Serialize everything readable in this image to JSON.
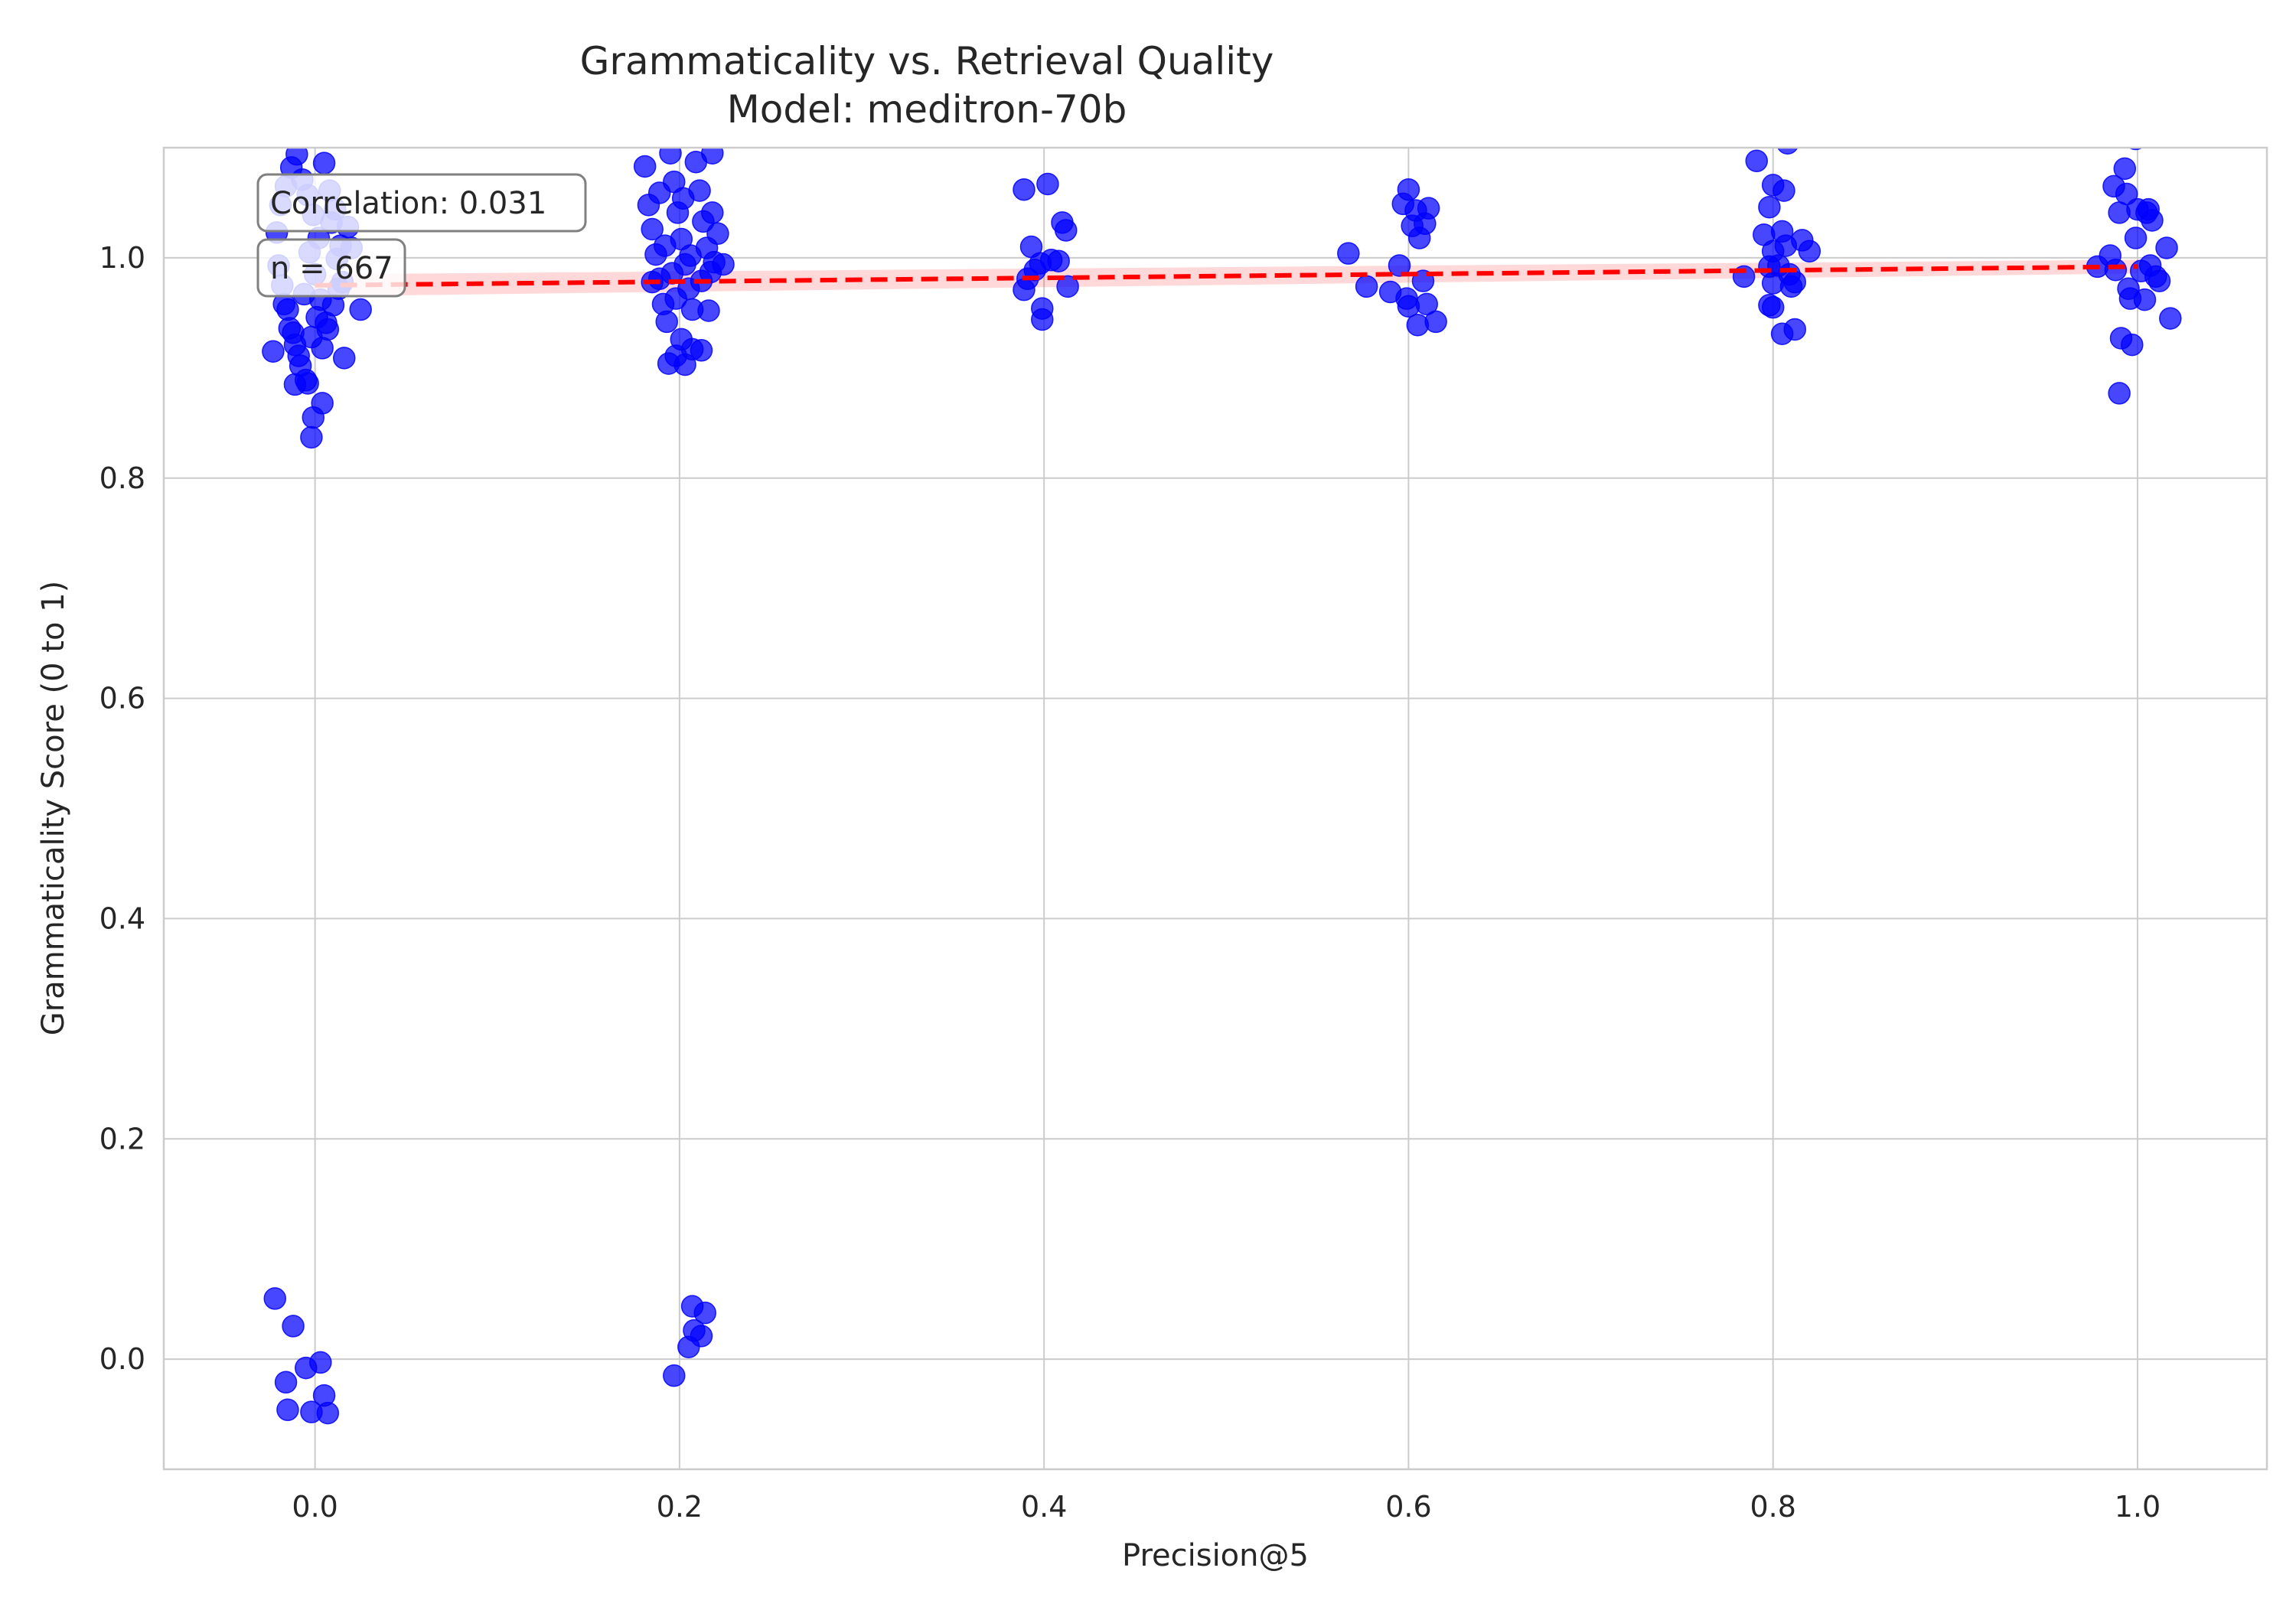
{
  "chart_data": {
    "type": "scatter",
    "title": "Grammaticality vs. Retrieval Quality",
    "subtitle": "Model: meditron-70b",
    "xlabel": "Precision@5",
    "ylabel": "Grammaticality Score (0 to 1)",
    "xlim": [
      -0.083,
      1.071
    ],
    "ylim": [
      -0.1,
      1.1
    ],
    "xticks": [
      0.0,
      0.2,
      0.4,
      0.6,
      0.8,
      1.0
    ],
    "xtick_labels": [
      "0.0",
      "0.2",
      "0.4",
      "0.6",
      "0.8",
      "1.0"
    ],
    "yticks": [
      0.0,
      0.2,
      0.4,
      0.6,
      0.8,
      1.0
    ],
    "ytick_labels": [
      "0.0",
      "0.2",
      "0.4",
      "0.6",
      "0.8",
      "1.0"
    ],
    "grid": true,
    "point_color": "#0000ff",
    "trend_color": "#ff0000",
    "annotations": {
      "correlation": "Correlation: 0.031",
      "n": "n = 667"
    },
    "trend_line": {
      "x": [
        0.0,
        1.0
      ],
      "y": [
        0.975,
        0.992
      ]
    },
    "points": [
      [
        -0.021,
        1.023
      ],
      [
        -0.018,
        0.975
      ],
      [
        -0.015,
        0.953
      ],
      [
        -0.012,
        0.932
      ],
      [
        -0.009,
        0.911
      ],
      [
        -0.006,
        0.967
      ],
      [
        -0.003,
        1.005
      ],
      [
        0.0,
        0.985
      ],
      [
        0.003,
        0.962
      ],
      [
        0.006,
        0.941
      ],
      [
        0.009,
        1.032
      ],
      [
        0.012,
        0.999
      ],
      [
        0.015,
        0.978
      ],
      [
        -0.019,
        1.048
      ],
      [
        -0.016,
        1.065
      ],
      [
        -0.013,
        1.082
      ],
      [
        -0.01,
        1.094
      ],
      [
        -0.007,
        1.071
      ],
      [
        -0.004,
        1.057
      ],
      [
        -0.001,
        1.039
      ],
      [
        0.002,
        1.018
      ],
      [
        0.005,
        1.086
      ],
      [
        0.008,
        1.061
      ],
      [
        0.011,
        1.044
      ],
      [
        0.014,
        1.011
      ],
      [
        -0.017,
        0.958
      ],
      [
        -0.014,
        0.936
      ],
      [
        -0.011,
        0.921
      ],
      [
        -0.008,
        0.902
      ],
      [
        -0.005,
        0.889
      ],
      [
        -0.002,
        0.928
      ],
      [
        0.001,
        0.946
      ],
      [
        0.004,
        0.918
      ],
      [
        0.007,
        0.935
      ],
      [
        0.01,
        0.957
      ],
      [
        0.013,
        0.972
      ],
      [
        0.016,
        0.909
      ],
      [
        -0.011,
        0.885
      ],
      [
        -0.004,
        0.886
      ],
      [
        0.004,
        0.868
      ],
      [
        -0.001,
        0.855
      ],
      [
        -0.002,
        0.837
      ],
      [
        0.025,
        0.953
      ],
      [
        0.02,
        1.009
      ],
      [
        0.018,
        1.028
      ],
      [
        -0.023,
        0.915
      ],
      [
        -0.02,
        0.993
      ],
      [
        -0.022,
        0.055
      ],
      [
        -0.012,
        0.03
      ],
      [
        -0.016,
        -0.021
      ],
      [
        -0.005,
        -0.008
      ],
      [
        0.003,
        -0.003
      ],
      [
        0.005,
        -0.033
      ],
      [
        -0.015,
        -0.046
      ],
      [
        -0.002,
        -0.048
      ],
      [
        0.007,
        -0.049
      ],
      [
        0.181,
        1.083
      ],
      [
        0.183,
        1.048
      ],
      [
        0.185,
        1.026
      ],
      [
        0.187,
        1.003
      ],
      [
        0.189,
        0.981
      ],
      [
        0.191,
        0.958
      ],
      [
        0.193,
        0.942
      ],
      [
        0.195,
        1.095
      ],
      [
        0.197,
        1.069
      ],
      [
        0.199,
        1.041
      ],
      [
        0.201,
        1.017
      ],
      [
        0.203,
        0.994
      ],
      [
        0.205,
        0.972
      ],
      [
        0.207,
        0.953
      ],
      [
        0.209,
        1.087
      ],
      [
        0.211,
        1.061
      ],
      [
        0.213,
        1.033
      ],
      [
        0.215,
        1.009
      ],
      [
        0.217,
        0.987
      ],
      [
        0.219,
        0.996
      ],
      [
        0.221,
        1.022
      ],
      [
        0.224,
        0.994
      ],
      [
        0.189,
        1.059
      ],
      [
        0.192,
        1.011
      ],
      [
        0.196,
        0.986
      ],
      [
        0.198,
        0.963
      ],
      [
        0.202,
        1.054
      ],
      [
        0.206,
        1.002
      ],
      [
        0.212,
        0.979
      ],
      [
        0.216,
        0.952
      ],
      [
        0.194,
        0.904
      ],
      [
        0.198,
        0.911
      ],
      [
        0.203,
        0.903
      ],
      [
        0.207,
        0.917
      ],
      [
        0.212,
        0.916
      ],
      [
        0.201,
        0.926
      ],
      [
        0.185,
        0.978
      ],
      [
        0.218,
        1.095
      ],
      [
        0.218,
        1.041
      ],
      [
        0.207,
        0.048
      ],
      [
        0.214,
        0.042
      ],
      [
        0.208,
        0.026
      ],
      [
        0.212,
        0.021
      ],
      [
        0.205,
        0.011
      ],
      [
        0.197,
        -0.015
      ],
      [
        0.389,
        1.062
      ],
      [
        0.402,
        1.067
      ],
      [
        0.41,
        1.032
      ],
      [
        0.412,
        1.025
      ],
      [
        0.393,
        1.01
      ],
      [
        0.398,
        0.995
      ],
      [
        0.404,
        0.998
      ],
      [
        0.408,
        0.997
      ],
      [
        0.391,
        0.981
      ],
      [
        0.389,
        0.971
      ],
      [
        0.413,
        0.974
      ],
      [
        0.399,
        0.954
      ],
      [
        0.399,
        0.944
      ],
      [
        0.395,
        0.989
      ],
      [
        0.567,
        1.004
      ],
      [
        0.577,
        0.974
      ],
      [
        0.59,
        0.969
      ],
      [
        0.595,
        0.993
      ],
      [
        0.597,
        1.049
      ],
      [
        0.6,
        1.062
      ],
      [
        0.602,
        1.029
      ],
      [
        0.604,
        1.043
      ],
      [
        0.606,
        1.018
      ],
      [
        0.608,
        0.979
      ],
      [
        0.609,
        1.031
      ],
      [
        0.611,
        1.045
      ],
      [
        0.599,
        0.963
      ],
      [
        0.6,
        0.956
      ],
      [
        0.605,
        0.939
      ],
      [
        0.61,
        0.958
      ],
      [
        0.615,
        0.942
      ],
      [
        0.784,
        0.983
      ],
      [
        0.791,
        1.088
      ],
      [
        0.795,
        1.021
      ],
      [
        0.798,
        1.046
      ],
      [
        0.8,
        1.006
      ],
      [
        0.8,
        1.066
      ],
      [
        0.803,
        0.993
      ],
      [
        0.805,
        1.024
      ],
      [
        0.806,
        1.061
      ],
      [
        0.807,
        1.011
      ],
      [
        0.808,
        1.104
      ],
      [
        0.809,
        0.985
      ],
      [
        0.81,
        0.974
      ],
      [
        0.812,
        0.978
      ],
      [
        0.816,
        1.016
      ],
      [
        0.82,
        1.006
      ],
      [
        0.798,
        0.957
      ],
      [
        0.8,
        0.955
      ],
      [
        0.805,
        0.931
      ],
      [
        0.812,
        0.935
      ],
      [
        0.8,
        0.977
      ],
      [
        0.798,
        0.992
      ],
      [
        0.978,
        0.992
      ],
      [
        0.985,
        1.002
      ],
      [
        0.987,
        1.065
      ],
      [
        0.988,
        0.989
      ],
      [
        0.99,
        1.041
      ],
      [
        0.991,
        0.927
      ],
      [
        0.993,
        1.081
      ],
      [
        0.994,
        1.058
      ],
      [
        0.995,
        0.972
      ],
      [
        0.996,
        0.963
      ],
      [
        0.997,
        0.921
      ],
      [
        0.999,
        1.018
      ],
      [
        1.0,
        1.044
      ],
      [
        1.002,
        0.988
      ],
      [
        1.004,
        0.962
      ],
      [
        1.005,
        1.041
      ],
      [
        1.006,
        1.044
      ],
      [
        1.007,
        0.993
      ],
      [
        1.008,
        1.034
      ],
      [
        1.01,
        0.983
      ],
      [
        1.012,
        0.979
      ],
      [
        1.016,
        1.009
      ],
      [
        1.018,
        0.945
      ],
      [
        0.999,
        1.108
      ],
      [
        0.99,
        0.877
      ]
    ]
  }
}
